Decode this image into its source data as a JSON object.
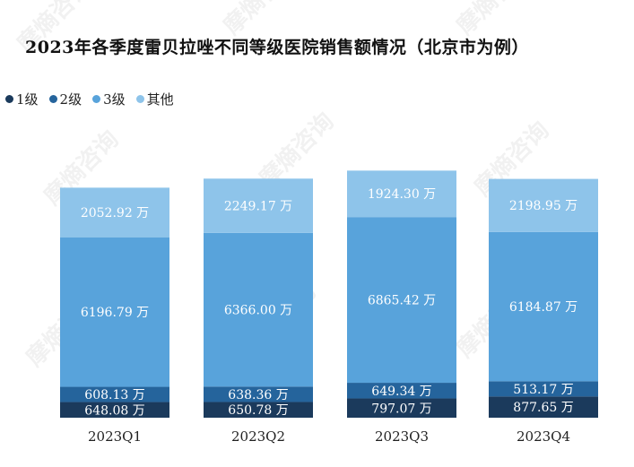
{
  "chart_data": {
    "type": "bar",
    "stacked": true,
    "title": "2023年各季度雷贝拉唑不同等级医院销售额情况（北京市为例）",
    "categories": [
      "2023Q1",
      "2023Q2",
      "2023Q3",
      "2023Q4"
    ],
    "unit_suffix": "万",
    "series": [
      {
        "name": "1级",
        "color": "#1b3a5c",
        "values": [
          648.08,
          650.78,
          797.07,
          877.65
        ]
      },
      {
        "name": "2级",
        "color": "#25649c",
        "values": [
          608.13,
          638.36,
          649.34,
          513.17
        ]
      },
      {
        "name": "3级",
        "color": "#58a3db",
        "values": [
          6196.79,
          6366.0,
          6865.42,
          6184.87
        ]
      },
      {
        "name": "其他",
        "color": "#8ec4ea",
        "values": [
          2052.92,
          2249.17,
          1924.3,
          2198.95
        ]
      }
    ],
    "legend_position": "top-left",
    "grid": false,
    "ylim": [
      0,
      10500
    ]
  },
  "watermark": {
    "text": "摩熵咨询"
  }
}
